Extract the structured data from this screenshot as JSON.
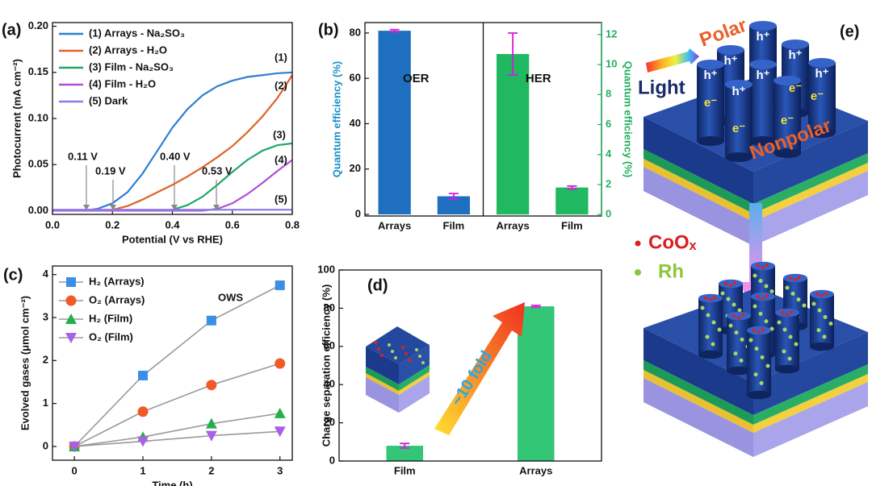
{
  "chart_data": [
    {
      "type": "line",
      "panel": "(a)",
      "xlabel": "Potential (V vs RHE)",
      "ylabel": "Photocurrent (mA cm⁻²)",
      "xlim": [
        0,
        0.8
      ],
      "xticks": [
        {
          "value": 0,
          "label": "0.0"
        },
        0.2,
        0.4,
        0.6,
        0.8
      ],
      "ylim": [
        -0.004,
        0.204
      ],
      "yticks": [
        {
          "value": 0,
          "label": "0.00"
        },
        {
          "value": 0.05,
          "label": "0.05"
        },
        {
          "value": 0.1,
          "label": "0.10"
        },
        {
          "value": 0.15,
          "label": "0.15"
        },
        {
          "value": 0.2,
          "label": "0.20"
        }
      ],
      "x": [
        0,
        0.05,
        0.1,
        0.15,
        0.2,
        0.25,
        0.3,
        0.35,
        0.4,
        0.45,
        0.5,
        0.55,
        0.6,
        0.65,
        0.7,
        0.75,
        0.8
      ],
      "series": [
        {
          "name": "(1) Arrays - Na₂SO₃",
          "color": "#2e7fd0",
          "values": [
            0,
            0,
            0,
            0.002,
            0.008,
            0.02,
            0.04,
            0.065,
            0.09,
            0.11,
            0.125,
            0.135,
            0.141,
            0.145,
            0.147,
            0.149,
            0.15
          ]
        },
        {
          "name": "(2) Arrays - H₂O",
          "color": "#e0612b",
          "values": [
            0,
            0,
            0,
            0,
            0.001,
            0.005,
            0.012,
            0.02,
            0.028,
            0.037,
            0.047,
            0.058,
            0.07,
            0.085,
            0.102,
            0.122,
            0.147
          ]
        },
        {
          "name": "(3) Film - Na₂SO₃",
          "color": "#21a866",
          "values": [
            0,
            0,
            0,
            0,
            0,
            0,
            0,
            0,
            0.001,
            0.006,
            0.015,
            0.028,
            0.042,
            0.055,
            0.065,
            0.071,
            0.073
          ]
        },
        {
          "name": "(4) Film - H₂O",
          "color": "#b04fd6",
          "values": [
            0,
            0,
            0,
            0,
            0,
            0,
            0,
            0,
            0,
            0,
            0,
            0.002,
            0.008,
            0.018,
            0.03,
            0.043,
            0.055
          ]
        },
        {
          "name": "(5) Dark",
          "color": "#8a7fe8",
          "values": [
            0.001,
            0.001,
            0.001,
            0.001,
            0.001,
            0.001,
            0.001,
            0.001,
            0.001,
            0.001,
            0.001,
            0.001,
            0.001,
            0.001,
            0.001,
            0.001,
            0.001
          ]
        }
      ],
      "annotations": [
        "(1)",
        "(2)",
        "(3)",
        "(4)",
        "(5)",
        "0.11 V",
        "0.19 V",
        "0.40 V",
        "0.53 V"
      ]
    },
    {
      "type": "bar",
      "panel": "(b)",
      "ylabel": "Quantum efficiency (%)",
      "y2label": "Quantum efficiency (%)",
      "categories": [
        "Arrays",
        "Film",
        "Arrays",
        "Film"
      ],
      "ylim": [
        -0.7,
        84.6
      ],
      "yticks": [
        0,
        20,
        40,
        60,
        80
      ],
      "y2lim": [
        -0.1,
        12.8
      ],
      "y2ticks": [
        0,
        2,
        4,
        6,
        8,
        10,
        12
      ],
      "series": [
        {
          "name": "OER",
          "color": "#1f6fc0",
          "values": [
            81,
            8,
            null,
            null
          ],
          "errors": [
            0.5,
            1.2,
            null,
            null
          ]
        },
        {
          "name": "HER",
          "color": "#20b860",
          "axis": "y2",
          "values": [
            null,
            null,
            10.7,
            1.8
          ],
          "errors": [
            null,
            null,
            1.4,
            0.1
          ]
        }
      ]
    },
    {
      "type": "line",
      "panel": "(c)",
      "markers": true,
      "line_color": "#9a9a9a",
      "xlabel": "Time (h)",
      "ylabel": "Evolved gases (μmol cm⁻²)",
      "xlim": [
        -0.32,
        3.18
      ],
      "xticks": [
        0,
        1,
        2,
        3
      ],
      "ylim": [
        -0.32,
        4.2
      ],
      "yticks": [
        0,
        1,
        2,
        3,
        4
      ],
      "x": [
        0,
        1,
        2,
        3
      ],
      "series": [
        {
          "name": "H₂ (Arrays)",
          "color": "#3b8ee8",
          "marker": "square",
          "values": [
            0,
            1.65,
            2.93,
            3.75
          ]
        },
        {
          "name": "O₂ (Arrays)",
          "color": "#f05a28",
          "marker": "circle",
          "values": [
            0,
            0.81,
            1.43,
            1.93
          ]
        },
        {
          "name": "H₂ (Film)",
          "color": "#22b04a",
          "marker": "triangle",
          "values": [
            0,
            0.22,
            0.53,
            0.77
          ]
        },
        {
          "name": "O₂ (Film)",
          "color": "#a860e8",
          "marker": "triangle-down",
          "values": [
            0,
            0.12,
            0.25,
            0.35
          ]
        }
      ],
      "annotations": [
        "OWS"
      ]
    },
    {
      "type": "bar",
      "panel": "(d)",
      "ylabel": "Charge separation efficiency (%)",
      "categories": [
        "Film",
        "Arrays"
      ],
      "ylim": [
        0,
        100
      ],
      "yticks": [
        0,
        20,
        40,
        60,
        80,
        100
      ],
      "series": [
        {
          "color": "#33c676",
          "values": [
            8,
            81
          ],
          "errors": [
            1.2,
            0.5
          ]
        }
      ],
      "annotations": [
        "~10 fold"
      ]
    }
  ],
  "diagram": {
    "panel": "(e)",
    "polar": "Polar",
    "light": "Light",
    "nonpolar": "Nonpolar",
    "hole": "h⁺",
    "electron": "e⁻",
    "coox": "CoOₓ",
    "rh": "Rh"
  }
}
